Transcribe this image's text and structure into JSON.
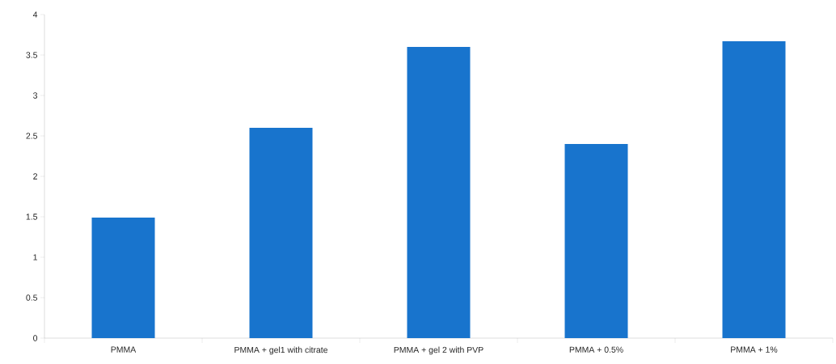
{
  "chart_data": {
    "type": "bar",
    "categories": [
      "PMMA",
      "PMMA + gel1 with citrate",
      "PMMA + gel 2 with PVP",
      "PMMA + 0.5%",
      "PMMA + 1%"
    ],
    "values": [
      1.49,
      2.6,
      3.6,
      2.4,
      3.67
    ],
    "color": "#1874cd",
    "ylim": [
      0,
      4
    ],
    "yticks": [
      0,
      0.5,
      1,
      1.5,
      2,
      2.5,
      3,
      3.5,
      4
    ],
    "grid": false
  }
}
